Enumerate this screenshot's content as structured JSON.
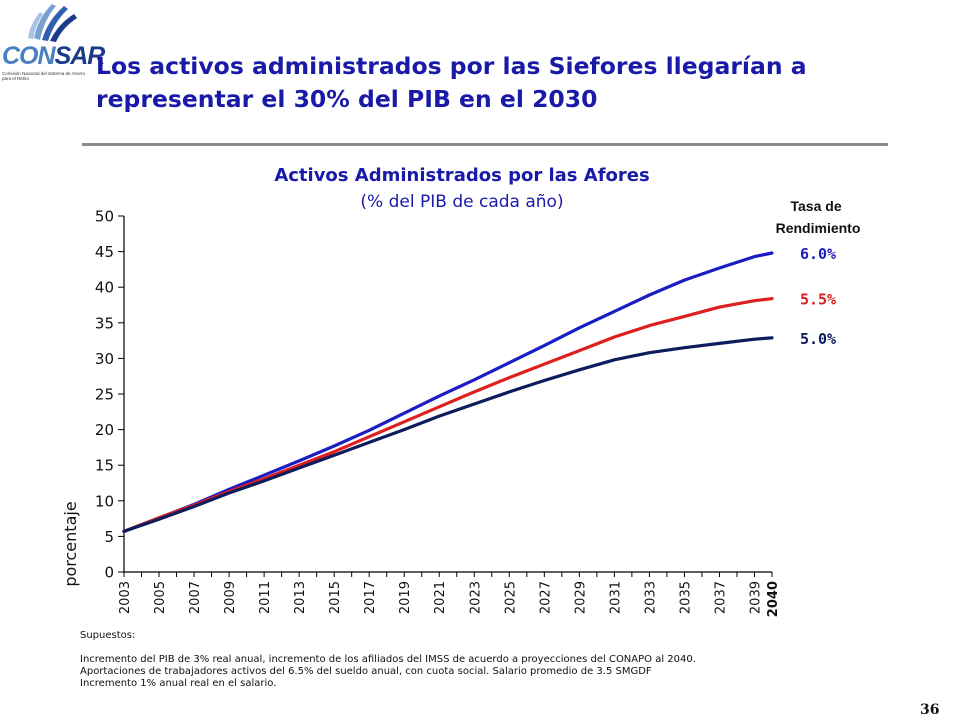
{
  "logo": {
    "word_part1": "CON",
    "word_part2": "SAR",
    "subtitle": "Comisión Nacional del Sistema de Ahorro para el Retiro"
  },
  "slide": {
    "title": "Los activos administrados por las Siefores llegarían a representar el 30% del PIB en el 2030",
    "page_number": "36"
  },
  "colors": {
    "title": "#1a1aa8",
    "series_6": "#1c1cc4",
    "series_55": "#dd1f1f",
    "series_5": "#0c1c5c"
  },
  "notes": {
    "label": "Supuestos:",
    "lines": [
      "Incremento del PIB de 3% real anual, incremento de los afiliados del IMSS de acuerdo a proyecciones del CONAPO al 2040.",
      "Aportaciones de trabajadores activos del 6.5% del sueldo anual, con cuota social. Salario promedio de 3.5 SMGDF",
      "Incremento 1% anual real en el salario."
    ]
  },
  "chart_data": {
    "type": "line",
    "title": "Activos Administrados por las Afores",
    "subtitle": "(% del PIB de cada año)",
    "xlabel": "",
    "ylabel": "porcentaje",
    "ylim": [
      0,
      50
    ],
    "yticks": [
      0,
      5,
      10,
      15,
      20,
      25,
      30,
      35,
      40,
      45,
      50
    ],
    "xlim": [
      2003,
      2040
    ],
    "xticks": [
      "2003",
      "2005",
      "2007",
      "2009",
      "2011",
      "2013",
      "2015",
      "2017",
      "2019",
      "2021",
      "2023",
      "2025",
      "2027",
      "2029",
      "2031",
      "2033",
      "2035",
      "2037",
      "2039",
      "2040"
    ],
    "legend_title": "Tasa de Rendimiento",
    "grid": false,
    "x": [
      2003,
      2005,
      2007,
      2009,
      2011,
      2013,
      2015,
      2017,
      2019,
      2021,
      2023,
      2025,
      2027,
      2029,
      2031,
      2033,
      2035,
      2037,
      2039,
      2040
    ],
    "series": [
      {
        "name": "6.0%",
        "color": "#1c1cc4",
        "values": [
          5.7,
          7.6,
          9.5,
          11.6,
          13.6,
          15.6,
          17.7,
          19.9,
          22.3,
          24.7,
          27.0,
          29.4,
          31.8,
          34.3,
          36.6,
          38.9,
          41.0,
          42.7,
          44.3,
          44.8
        ]
      },
      {
        "name": "5.5%",
        "color": "#dd1f1f",
        "values": [
          5.7,
          7.6,
          9.4,
          11.3,
          13.1,
          15.0,
          16.9,
          19.0,
          21.1,
          23.2,
          25.3,
          27.3,
          29.2,
          31.1,
          33.0,
          34.6,
          35.9,
          37.2,
          38.1,
          38.4
        ]
      },
      {
        "name": "5.0%",
        "color": "#0c1c5c",
        "values": [
          5.7,
          7.4,
          9.2,
          11.1,
          12.8,
          14.6,
          16.4,
          18.2,
          20.0,
          21.9,
          23.6,
          25.3,
          26.9,
          28.4,
          29.8,
          30.8,
          31.5,
          32.1,
          32.7,
          32.9
        ]
      }
    ]
  }
}
